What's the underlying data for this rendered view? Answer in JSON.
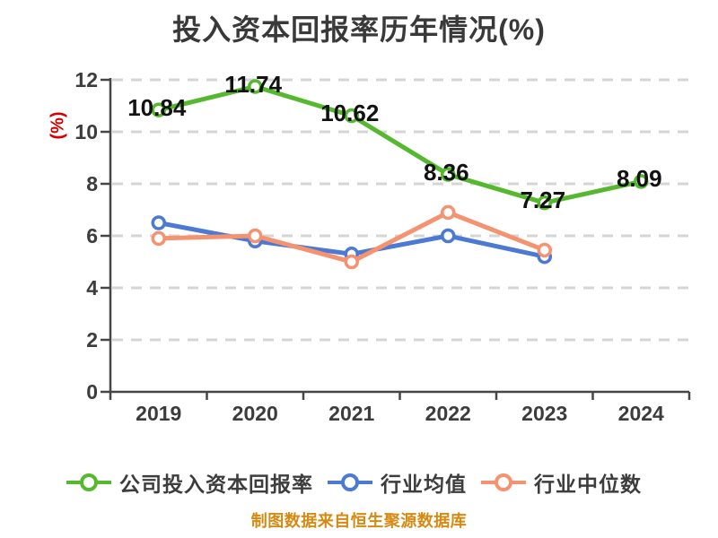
{
  "title": {
    "text": "投入资本回报率历年情况(%)",
    "color": "#393939"
  },
  "y_axis": {
    "label": "(%)",
    "label_color": "#d50000",
    "ticks": [
      0,
      2,
      4,
      6,
      8,
      10,
      12
    ],
    "min": 0,
    "max": 12
  },
  "x_axis": {
    "categories": [
      "2019",
      "2020",
      "2021",
      "2022",
      "2023",
      "2024"
    ]
  },
  "chart_data": {
    "type": "line",
    "title": "投入资本回报率历年情况(%)",
    "xlabel": "",
    "ylabel": "(%)",
    "ylim": [
      0,
      12
    ],
    "grid": "dashed-horizontal",
    "legend_position": "bottom",
    "categories": [
      "2019",
      "2020",
      "2021",
      "2022",
      "2023",
      "2024"
    ],
    "series": [
      {
        "name": "公司投入资本回报率",
        "color": "#55b82e",
        "values": [
          10.84,
          11.74,
          10.62,
          8.36,
          7.27,
          8.09
        ],
        "point_labels": [
          "10.84",
          "11.74",
          "10.62",
          "8.36",
          "7.27",
          "8.09"
        ]
      },
      {
        "name": "行业均值",
        "color": "#4b79d3",
        "values": [
          6.5,
          5.8,
          5.3,
          6.0,
          5.2,
          null
        ],
        "point_labels": []
      },
      {
        "name": "行业中位数",
        "color": "#f5926f",
        "values": [
          5.9,
          6.0,
          5.0,
          6.9,
          5.45,
          null
        ],
        "point_labels": []
      }
    ]
  },
  "legend": {
    "items": [
      {
        "label": "公司投入资本回报率",
        "color": "#55b82e"
      },
      {
        "label": "行业均值",
        "color": "#4b79d3"
      },
      {
        "label": "行业中位数",
        "color": "#f5926f"
      }
    ]
  },
  "footer": {
    "text": "制图数据来自恒生聚源数据库",
    "color": "#d78a12"
  },
  "style_colors": {
    "axis": "#464646",
    "gridline": "#d5d5d5",
    "tick_text": "#3c3c3c",
    "data_label": "#121212",
    "marker_fill": "#ffffff"
  }
}
